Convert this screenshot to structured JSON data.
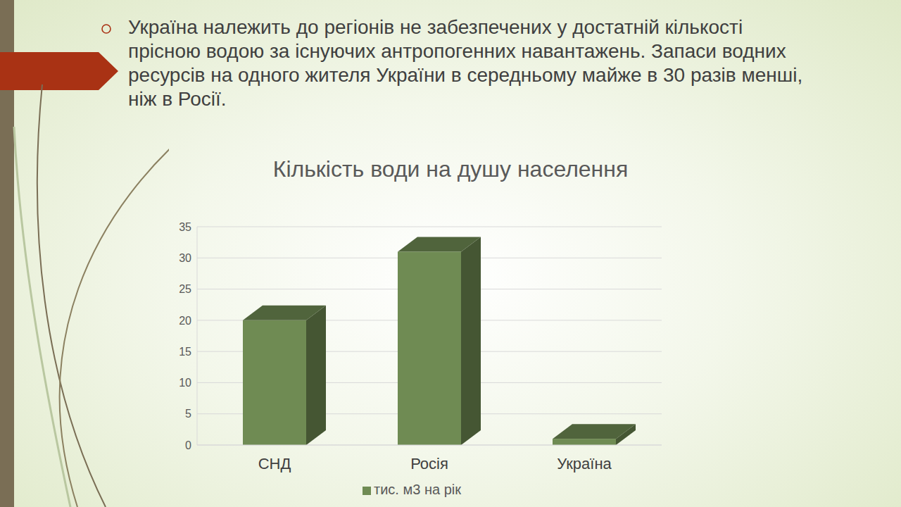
{
  "chart_data": {
    "type": "bar",
    "title": "Кількість води на душу населення",
    "annotation": "Україна належить до регіонів не забезпечених у достатній кількості прісною водою за існуючих антропогенних навантажень. Запаси водних ресурсів на одного жителя України в середньому майже в 30 разів менші, ніж в Росії.",
    "categories": [
      "СНД",
      "Росія",
      "Україна"
    ],
    "series": [
      {
        "name": "тис. м3 на рік",
        "color": "#6f8b53",
        "values": [
          20,
          31,
          1
        ]
      }
    ],
    "ylim": [
      0,
      35
    ],
    "yticks": [
      0,
      5,
      10,
      15,
      20,
      25,
      30,
      35
    ],
    "grid": true,
    "legend": "bottom"
  }
}
